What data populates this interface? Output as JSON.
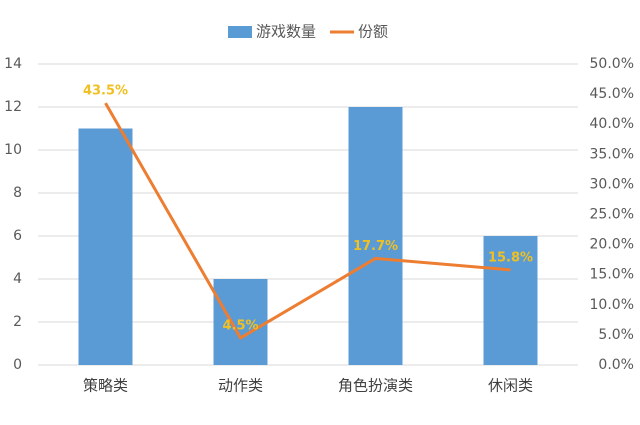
{
  "chart_data": {
    "type": "bar-line",
    "categories": [
      "策略类",
      "动作类",
      "角色扮演类",
      "休闲类"
    ],
    "series": [
      {
        "name": "游戏数量",
        "color": "#5b9bd5",
        "type": "bar",
        "values": [
          11,
          4,
          12,
          6
        ]
      },
      {
        "name": "份额",
        "color": "#ed7d31",
        "type": "line",
        "axis": "y2",
        "values": [
          43.5,
          4.5,
          17.7,
          15.8
        ],
        "value_labels": [
          "43.5%",
          "4.5%",
          "17.7%",
          "15.8%"
        ]
      }
    ],
    "ylim": [
      0,
      14
    ],
    "yticks": [
      0,
      2,
      4,
      6,
      8,
      10,
      12,
      14
    ],
    "y2lim": [
      0,
      50
    ],
    "y2ticks": [
      {
        "value": 0,
        "label": "0.0%"
      },
      {
        "value": 5,
        "label": "5.0%"
      },
      {
        "value": 10,
        "label": "10.0%"
      },
      {
        "value": 15,
        "label": "15.0%"
      },
      {
        "value": 20,
        "label": "20.0%"
      },
      {
        "value": 25,
        "label": "25.0%"
      },
      {
        "value": 30,
        "label": "30.0%"
      },
      {
        "value": 35,
        "label": "35.0%"
      },
      {
        "value": 40,
        "label": "40.0%"
      },
      {
        "value": 45,
        "label": "45.0%"
      },
      {
        "value": 50,
        "label": "50.0%"
      }
    ],
    "grid": true,
    "legend": "top"
  }
}
